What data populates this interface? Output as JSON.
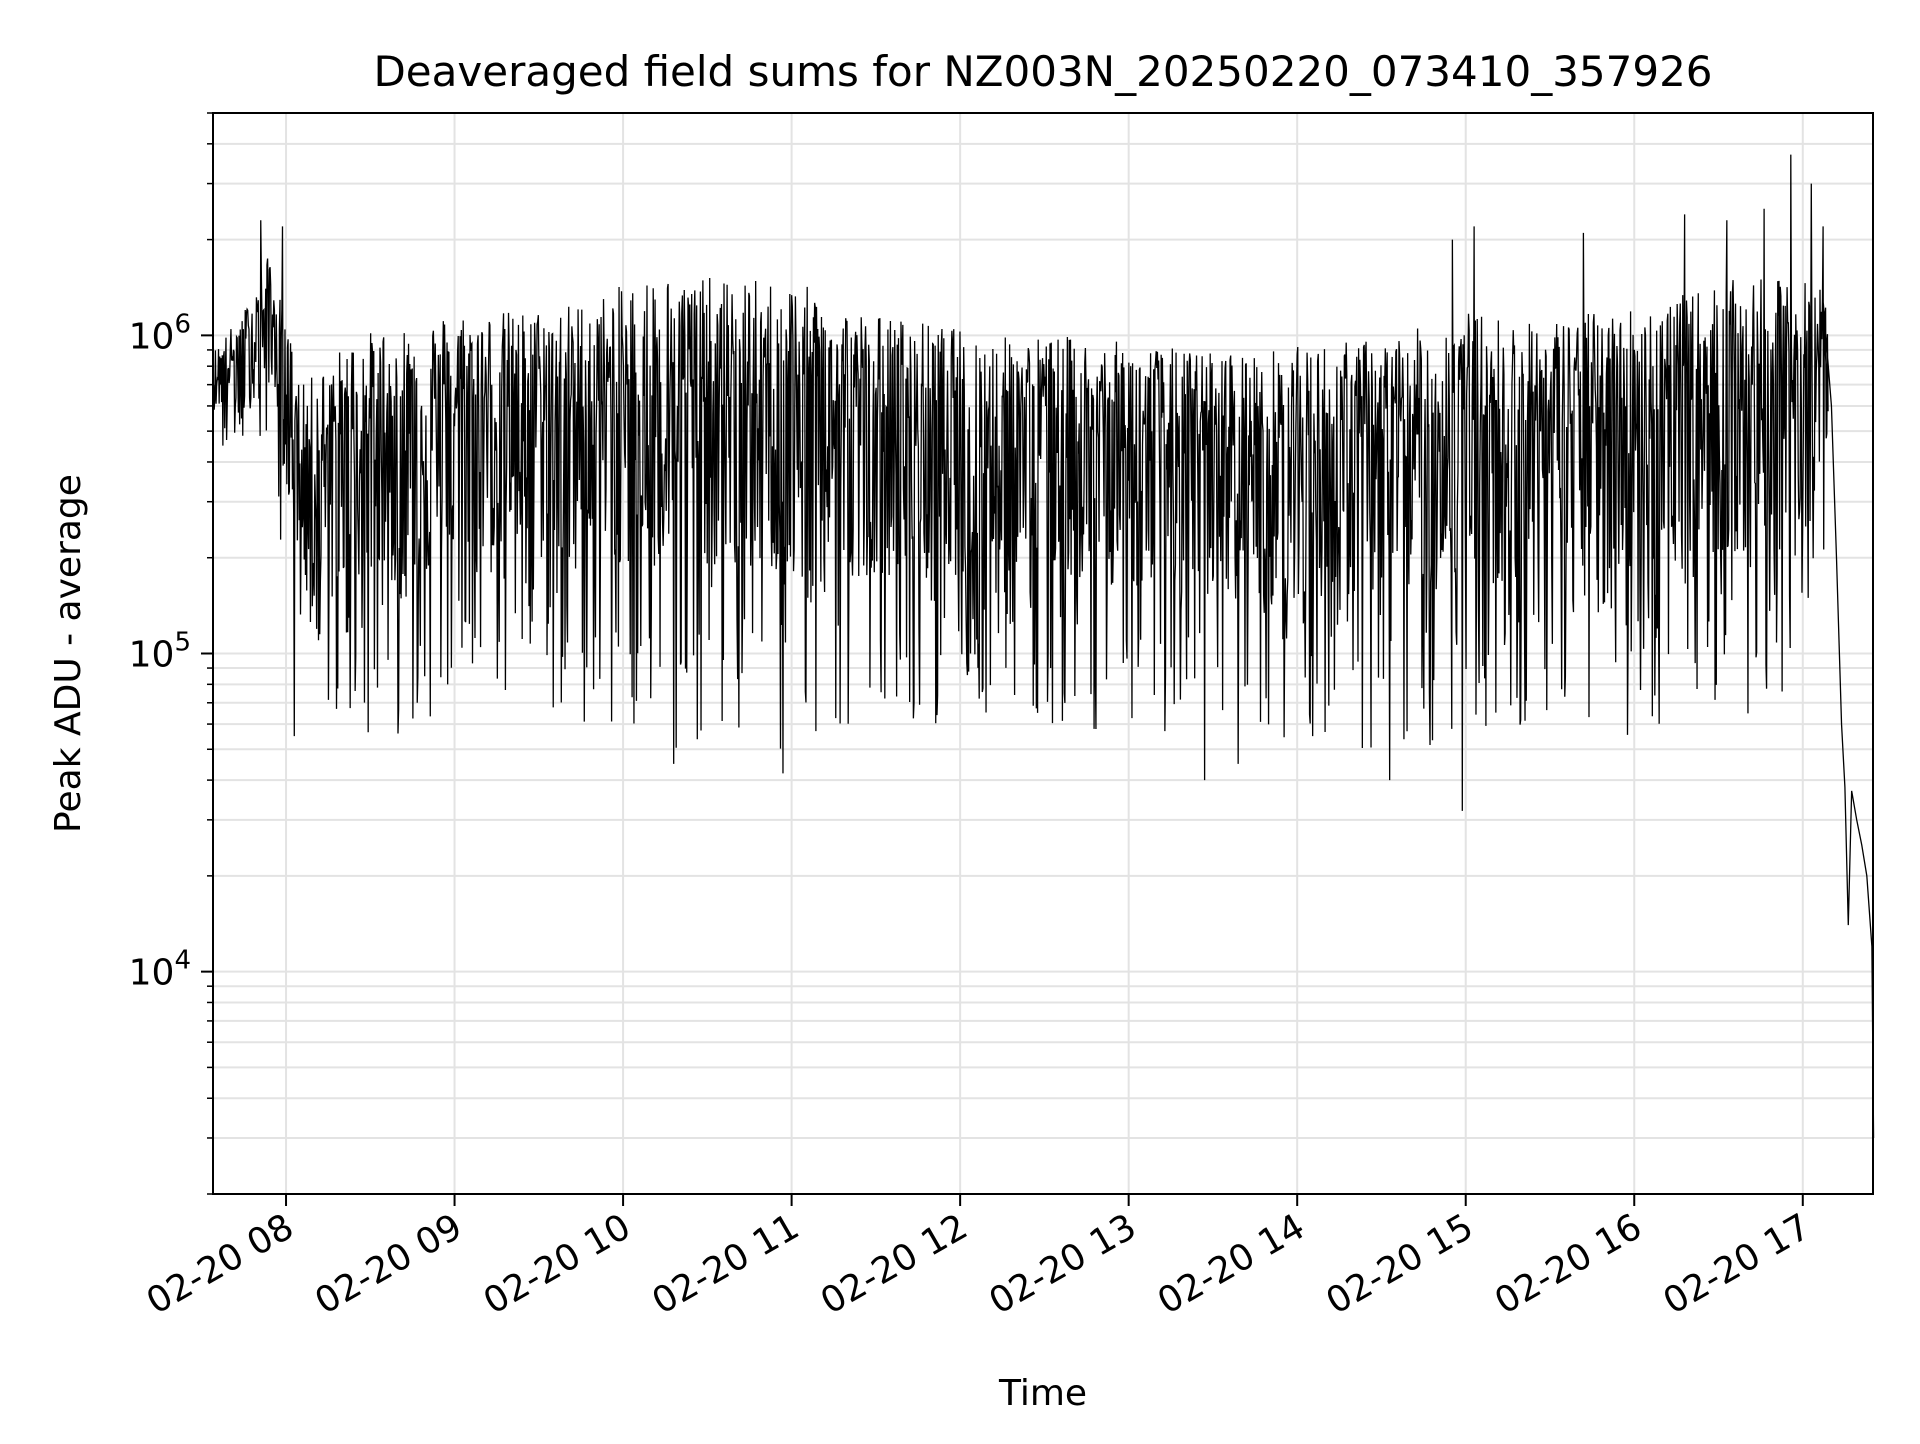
{
  "chart_data": {
    "type": "line",
    "title": "Deaveraged field sums for NZ003N_20250220_073410_357926",
    "xlabel": "Time",
    "ylabel": "Peak ADU - average",
    "yscale": "log",
    "grid": true,
    "xlim": [
      "2025-02-20 07:34",
      "2025-02-20 17:25"
    ],
    "ylim": [
      2000,
      5000000
    ],
    "x_tick_labels": [
      "02-20 08",
      "02-20 09",
      "02-20 10",
      "02-20 11",
      "02-20 12",
      "02-20 13",
      "02-20 14",
      "02-20 15",
      "02-20 16",
      "02-20 17"
    ],
    "x_tick_hours": [
      8,
      9,
      10,
      11,
      12,
      13,
      14,
      15,
      16,
      17
    ],
    "y_tick_labels": [
      {
        "value": 10000,
        "base": "10",
        "exp": "4"
      },
      {
        "value": 100000,
        "base": "10",
        "exp": "5"
      },
      {
        "value": 1000000,
        "base": "10",
        "exp": "6"
      }
    ],
    "series": [
      {
        "color": "#000000",
        "envelope": [
          {
            "hour": 7.57,
            "upper": 900000,
            "lower": 450000
          },
          {
            "hour": 7.75,
            "upper": 1200000,
            "lower": 350000
          },
          {
            "hour": 7.9,
            "upper": 1800000,
            "lower": 400000
          },
          {
            "hour": 8.1,
            "upper": 700000,
            "lower": 70000
          },
          {
            "hour": 8.4,
            "upper": 1000000,
            "lower": 55000
          },
          {
            "hour": 8.7,
            "upper": 1100000,
            "lower": 55000
          },
          {
            "hour": 9.0,
            "upper": 1200000,
            "lower": 70000
          },
          {
            "hour": 9.4,
            "upper": 1200000,
            "lower": 65000
          },
          {
            "hour": 9.8,
            "upper": 1300000,
            "lower": 60000
          },
          {
            "hour": 10.2,
            "upper": 1600000,
            "lower": 50000
          },
          {
            "hour": 10.6,
            "upper": 1500000,
            "lower": 50000
          },
          {
            "hour": 11.0,
            "upper": 1500000,
            "lower": 45000
          },
          {
            "hour": 11.4,
            "upper": 1200000,
            "lower": 55000
          },
          {
            "hour": 11.8,
            "upper": 1100000,
            "lower": 60000
          },
          {
            "hour": 12.2,
            "upper": 1000000,
            "lower": 60000
          },
          {
            "hour": 12.6,
            "upper": 1000000,
            "lower": 60000
          },
          {
            "hour": 13.0,
            "upper": 950000,
            "lower": 55000
          },
          {
            "hour": 13.4,
            "upper": 900000,
            "lower": 50000
          },
          {
            "hour": 13.8,
            "upper": 900000,
            "lower": 50000
          },
          {
            "hour": 14.2,
            "upper": 950000,
            "lower": 50000
          },
          {
            "hour": 14.6,
            "upper": 1000000,
            "lower": 45000
          },
          {
            "hour": 15.0,
            "upper": 1200000,
            "lower": 55000
          },
          {
            "hour": 15.4,
            "upper": 1100000,
            "lower": 55000
          },
          {
            "hour": 15.8,
            "upper": 1200000,
            "lower": 55000
          },
          {
            "hour": 16.2,
            "upper": 1300000,
            "lower": 55000
          },
          {
            "hour": 16.6,
            "upper": 1500000,
            "lower": 60000
          },
          {
            "hour": 17.0,
            "upper": 1500000,
            "lower": 70000
          },
          {
            "hour": 17.15,
            "upper": 1400000,
            "lower": 250000
          }
        ],
        "spikes": [
          {
            "hour": 7.85,
            "value": 2300000
          },
          {
            "hour": 7.98,
            "value": 2200000
          },
          {
            "hour": 8.05,
            "value": 55000
          },
          {
            "hour": 10.3,
            "value": 45000
          },
          {
            "hour": 10.95,
            "value": 42000
          },
          {
            "hour": 13.45,
            "value": 40000
          },
          {
            "hour": 13.65,
            "value": 45000
          },
          {
            "hour": 14.55,
            "value": 40000
          },
          {
            "hour": 14.98,
            "value": 32000
          },
          {
            "hour": 15.05,
            "value": 2200000
          },
          {
            "hour": 14.92,
            "value": 2000000
          },
          {
            "hour": 15.7,
            "value": 2100000
          },
          {
            "hour": 16.3,
            "value": 2400000
          },
          {
            "hour": 16.55,
            "value": 2300000
          },
          {
            "hour": 16.77,
            "value": 2500000
          },
          {
            "hour": 16.93,
            "value": 3700000
          },
          {
            "hour": 17.05,
            "value": 3000000
          },
          {
            "hour": 17.12,
            "value": 2200000
          }
        ],
        "tail": [
          {
            "hour": 17.12,
            "value": 1300000
          },
          {
            "hour": 17.17,
            "value": 600000
          },
          {
            "hour": 17.2,
            "value": 200000
          },
          {
            "hour": 17.23,
            "value": 60000
          },
          {
            "hour": 17.25,
            "value": 38000
          },
          {
            "hour": 17.27,
            "value": 14000
          },
          {
            "hour": 17.29,
            "value": 37000
          },
          {
            "hour": 17.32,
            "value": 30000
          },
          {
            "hour": 17.35,
            "value": 25000
          },
          {
            "hour": 17.38,
            "value": 20000
          },
          {
            "hour": 17.41,
            "value": 12000
          },
          {
            "hour": 17.42,
            "value": 3000
          }
        ]
      }
    ]
  }
}
